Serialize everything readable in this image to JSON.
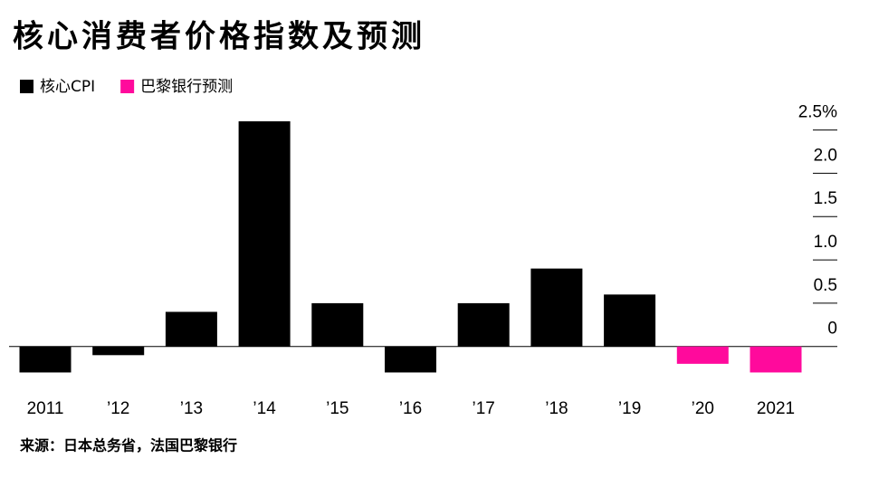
{
  "chart_data": {
    "type": "bar",
    "title": "核心消费者价格指数及预测",
    "source": "来源：日本总务省，法国巴黎银行",
    "categories": [
      "2011",
      "’12",
      "’13",
      "’14",
      "’15",
      "’16",
      "’17",
      "’18",
      "’19",
      "’20",
      "2021"
    ],
    "series": [
      {
        "name": "核心CPI",
        "color": "#000000",
        "values": [
          -0.3,
          -0.1,
          0.4,
          2.6,
          0.5,
          -0.3,
          0.5,
          0.9,
          0.6,
          null,
          null
        ]
      },
      {
        "name": "巴黎银行预测",
        "color": "#ff0a9c",
        "values": [
          null,
          null,
          null,
          null,
          null,
          null,
          null,
          null,
          null,
          -0.2,
          -0.3
        ]
      }
    ],
    "ylim": [
      -0.4,
      2.6
    ],
    "yticks": [
      {
        "value": 2.5,
        "label": "2.5%"
      },
      {
        "value": 2,
        "label": "2.0"
      },
      1.5,
      {
        "value": 1,
        "label": "1.0"
      },
      0.5,
      0
    ],
    "grid": false
  }
}
